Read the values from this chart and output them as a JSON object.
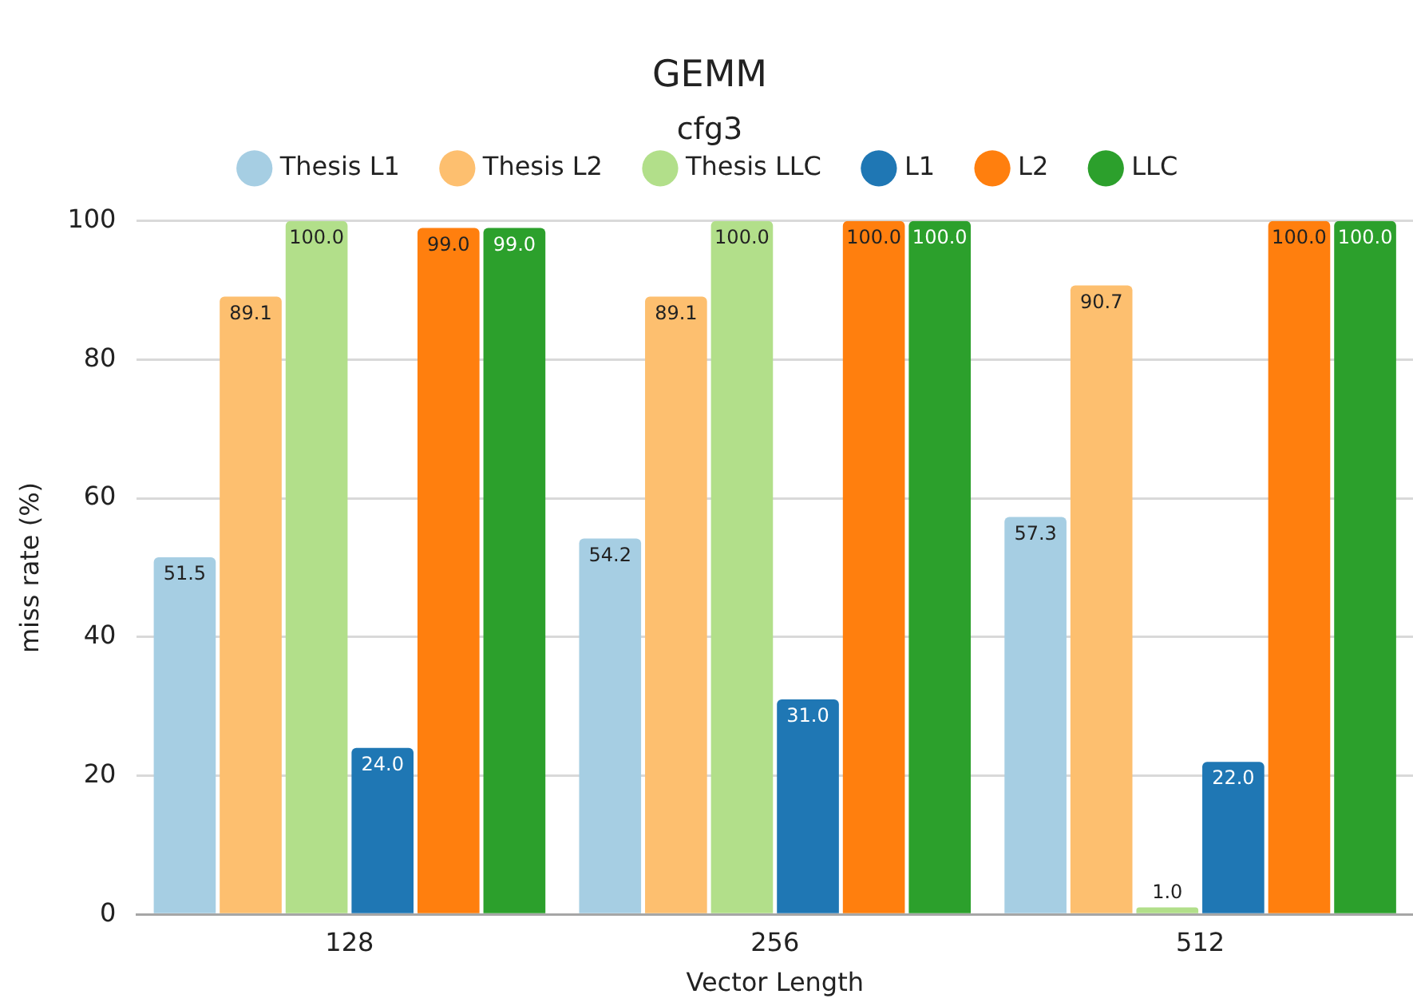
{
  "chart_data": {
    "type": "bar",
    "title": "GEMM",
    "subtitle": "cfg3",
    "xlabel": "Vector Length",
    "ylabel": "miss rate (%)",
    "categories": [
      "128",
      "256",
      "512"
    ],
    "series": [
      {
        "name": "Thesis L1",
        "color": "#a6cee3",
        "values": [
          51.5,
          54.2,
          57.3
        ],
        "value_labels": [
          "51.5",
          "54.2",
          "57.3"
        ]
      },
      {
        "name": "Thesis L2",
        "color": "#fdbf6f",
        "values": [
          89.1,
          89.1,
          90.7
        ],
        "value_labels": [
          "89.1",
          "89.1",
          "90.7"
        ]
      },
      {
        "name": "Thesis LLC",
        "color": "#b2df8a",
        "values": [
          100.0,
          100.0,
          1.0
        ],
        "value_labels": [
          "100.0",
          "100.0",
          "1.0"
        ]
      },
      {
        "name": "L1",
        "color": "#1f77b4",
        "values": [
          24.0,
          31.0,
          22.0
        ],
        "value_labels": [
          "24.0",
          "31.0",
          "22.0"
        ]
      },
      {
        "name": "L2",
        "color": "#ff7f0e",
        "values": [
          99.0,
          100.0,
          100.0
        ],
        "value_labels": [
          "99.0",
          "100.0",
          "100.0"
        ]
      },
      {
        "name": "LLC",
        "color": "#2ca02c",
        "values": [
          99.0,
          100.0,
          100.0
        ],
        "value_labels": [
          "99.0",
          "100.0",
          "100.0"
        ]
      }
    ],
    "ylim": [
      0,
      100
    ],
    "yticks": [
      0,
      20,
      40,
      60,
      80,
      100
    ],
    "grid": "y",
    "legend": "top"
  }
}
